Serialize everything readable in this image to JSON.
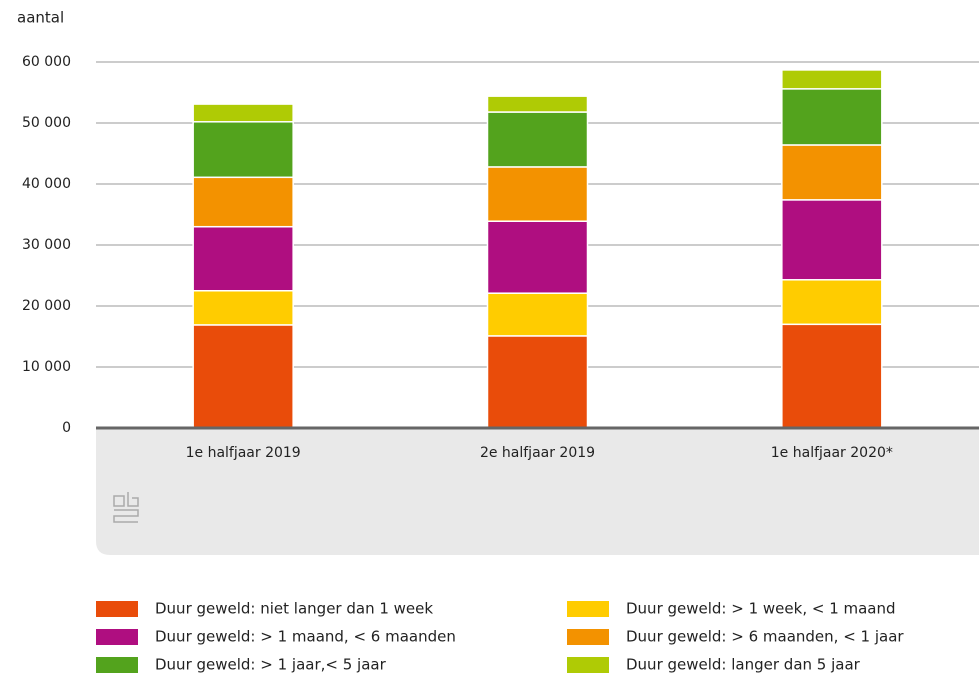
{
  "chart_data": {
    "type": "stacked_bar",
    "y_label": "aantal",
    "categories": [
      "1e halfjaar 2019",
      "2e halfjaar 2019",
      "1e halfjaar 2020*"
    ],
    "series": [
      {
        "name": "Duur geweld: niet langer dan 1 week",
        "color": "#e94c0a",
        "values": [
          16900,
          15100,
          17000
        ]
      },
      {
        "name": "Duur geweld: > 1 week, < 1 maand",
        "color": "#ffcc00",
        "values": [
          5600,
          7000,
          7300
        ]
      },
      {
        "name": "Duur geweld: > 1 maand, < 6 maanden",
        "color": "#af0e80",
        "values": [
          10500,
          11800,
          13100
        ]
      },
      {
        "name": "Duur geweld: > 6 maanden, < 1 jaar",
        "color": "#f39200",
        "values": [
          8100,
          8900,
          9000
        ]
      },
      {
        "name": "Duur geweld: > 1 jaar,< 5 jaar",
        "color": "#53a31d",
        "values": [
          9100,
          9000,
          9200
        ]
      },
      {
        "name": "Duur geweld: langer dan 5 jaar",
        "color": "#afcb05",
        "values": [
          2900,
          2600,
          3100
        ]
      }
    ],
    "ylim": [
      0,
      60000
    ],
    "yticks": [
      0,
      {
        "value": 10000,
        "label": "10 000"
      },
      {
        "value": 20000,
        "label": "20 000"
      },
      {
        "value": 30000,
        "label": "30 000"
      },
      {
        "value": 40000,
        "label": "40 000"
      },
      {
        "value": 50000,
        "label": "50 000"
      },
      {
        "value": 60000,
        "label": "60 000"
      }
    ],
    "grid": true
  }
}
